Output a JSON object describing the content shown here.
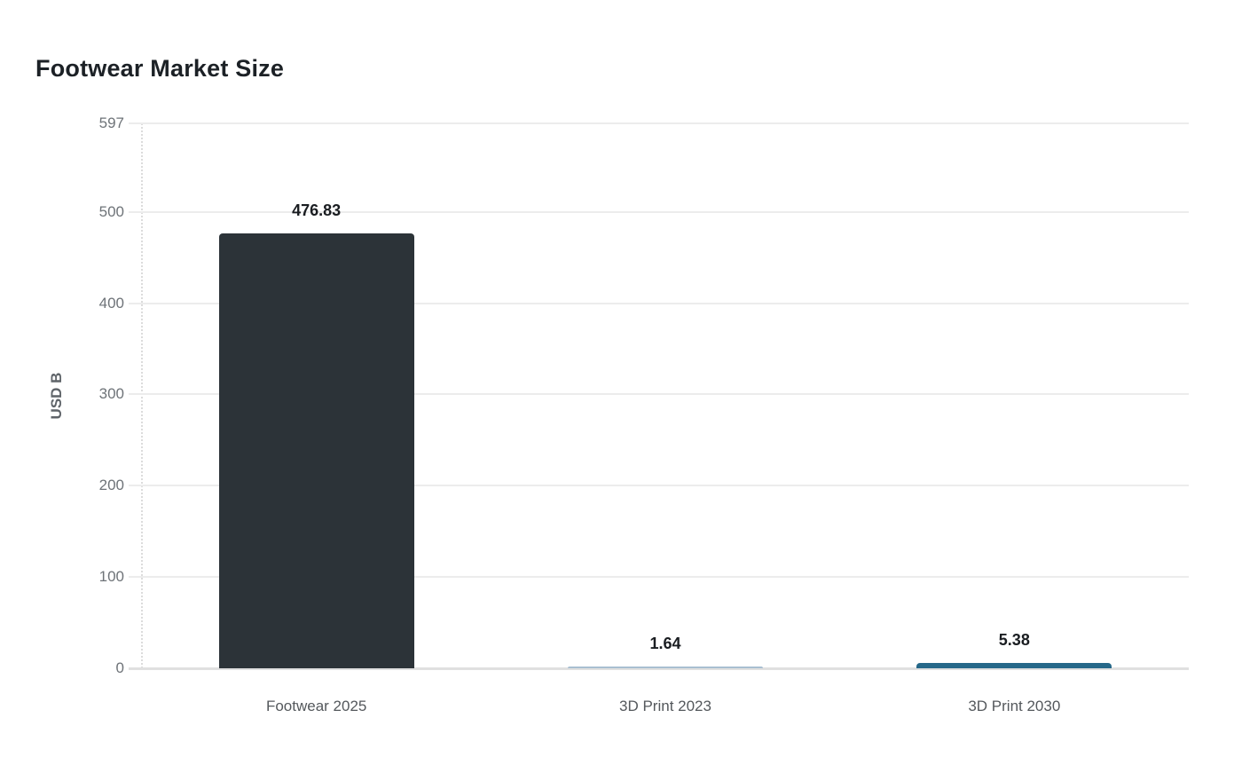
{
  "chart_data": {
    "type": "bar",
    "title": "Footwear Market Size",
    "ylabel": "USD B",
    "xlabel": "",
    "categories": [
      "Footwear 2025",
      "3D Print 2023",
      "3D Print 2030"
    ],
    "values": [
      476.83,
      1.64,
      5.38
    ],
    "value_labels": [
      "476.83",
      "1.64",
      "5.38"
    ],
    "bar_colors": [
      "#2c3338",
      "#a9bfd1",
      "#266889"
    ],
    "yticks": [
      0,
      100,
      200,
      300,
      400,
      500,
      597
    ],
    "ytick_labels": [
      "0",
      "100",
      "200",
      "300",
      "400",
      "500",
      "597"
    ],
    "ylim": [
      0,
      597
    ],
    "grid": "horizontal",
    "legend": "none",
    "colors": {
      "title_text": "#1c2126",
      "axis_text": "#6e7378",
      "category_text": "#54585c",
      "gridline": "#ececec",
      "baseline": "#e0e0e0",
      "background": "#ffffff"
    }
  }
}
